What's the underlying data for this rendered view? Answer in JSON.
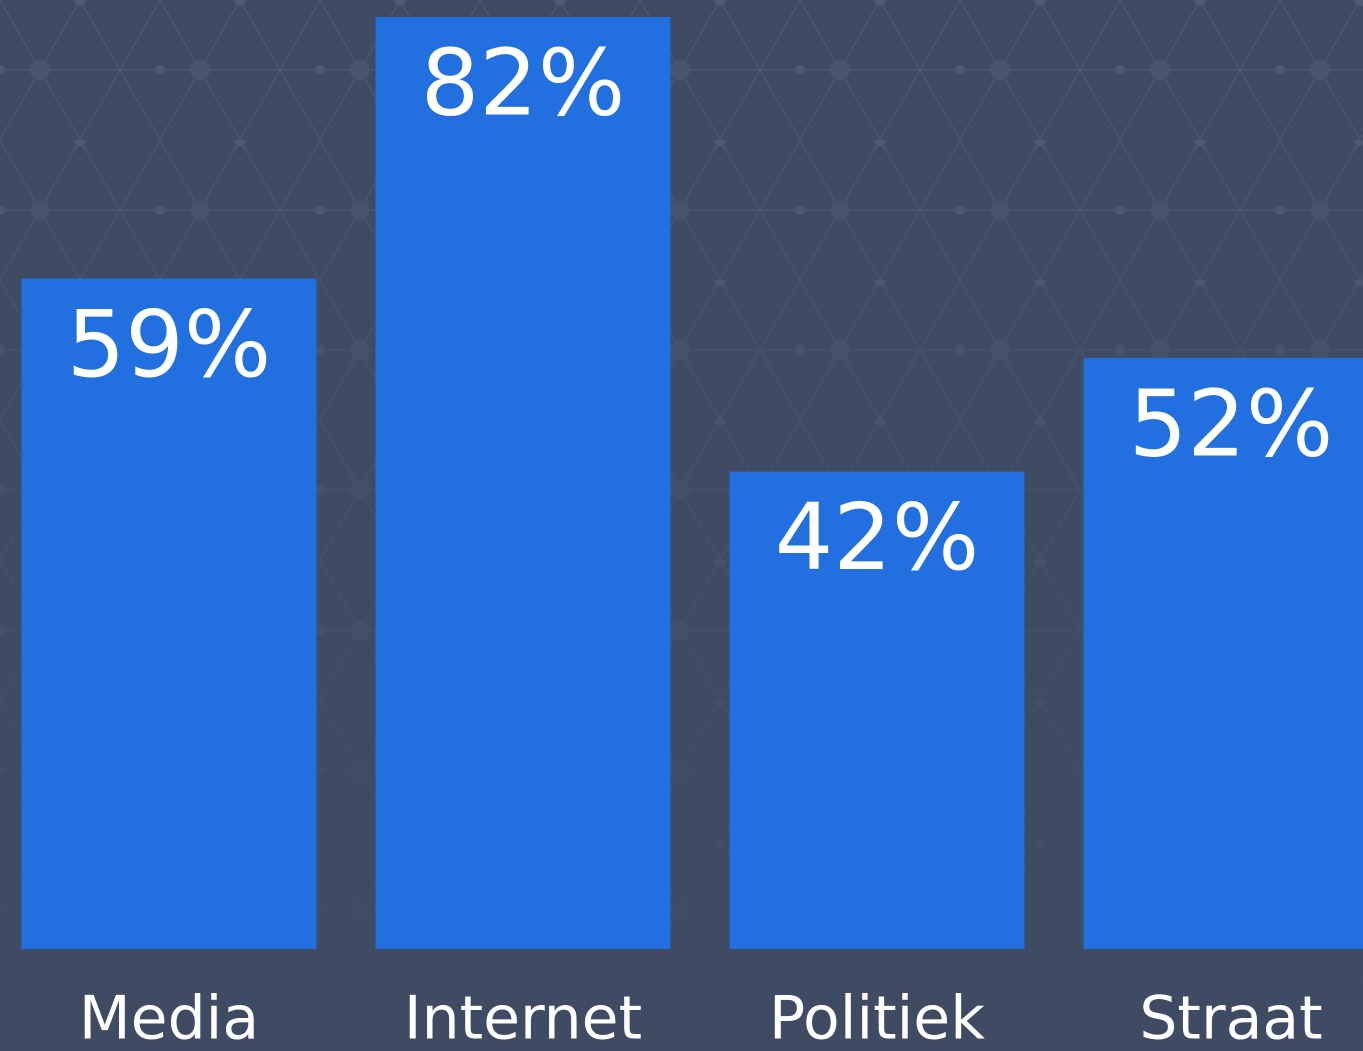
{
  "chart_data": {
    "type": "bar",
    "categories": [
      "Media",
      "Internet",
      "Politiek",
      "Straat"
    ],
    "values": [
      59,
      82,
      42,
      52
    ],
    "value_labels": [
      "59%",
      "82%",
      "42%",
      "52%"
    ],
    "color": "#2270e0",
    "ylim": [
      0,
      83.5
    ]
  }
}
